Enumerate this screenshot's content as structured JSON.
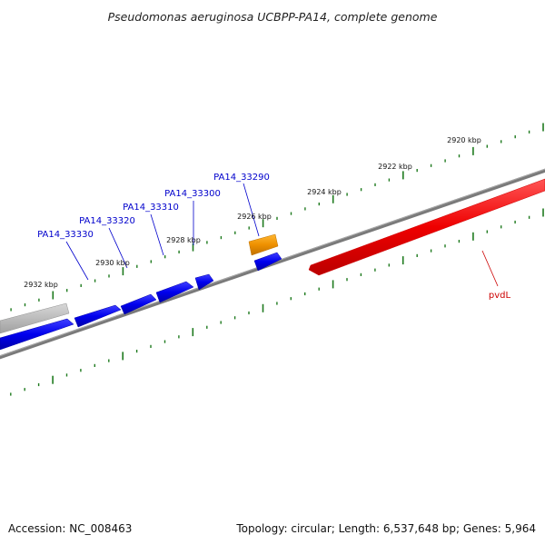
{
  "title": "Pseudomonas aeruginosa UCBPP-PA14, complete genome",
  "accession": "Accession: NC_008463",
  "topology": "Topology: circular; Length: 6,537,648 bp; Genes: 5,964",
  "scale_labels": [
    "2920 kbp",
    "2922 kbp",
    "2924 kbp",
    "2926 kbp",
    "2928 kbp",
    "2930 kbp",
    "2932 kbp"
  ],
  "gene_labels": [
    "PA14_33290",
    "PA14_33300",
    "PA14_33310",
    "PA14_33320",
    "PA14_33330"
  ],
  "pvdl_label": "pvdL",
  "colors": {
    "backbone": "#808080",
    "forward_gene": "#0000ee",
    "highlight_gene": "#ee9900",
    "pvdl_gene": "#ee0000",
    "grey_gene": "#b0b0b0",
    "tick": "#1e7a1e",
    "gene_label": "#0000cc",
    "pvdl_label": "#cc0000"
  }
}
